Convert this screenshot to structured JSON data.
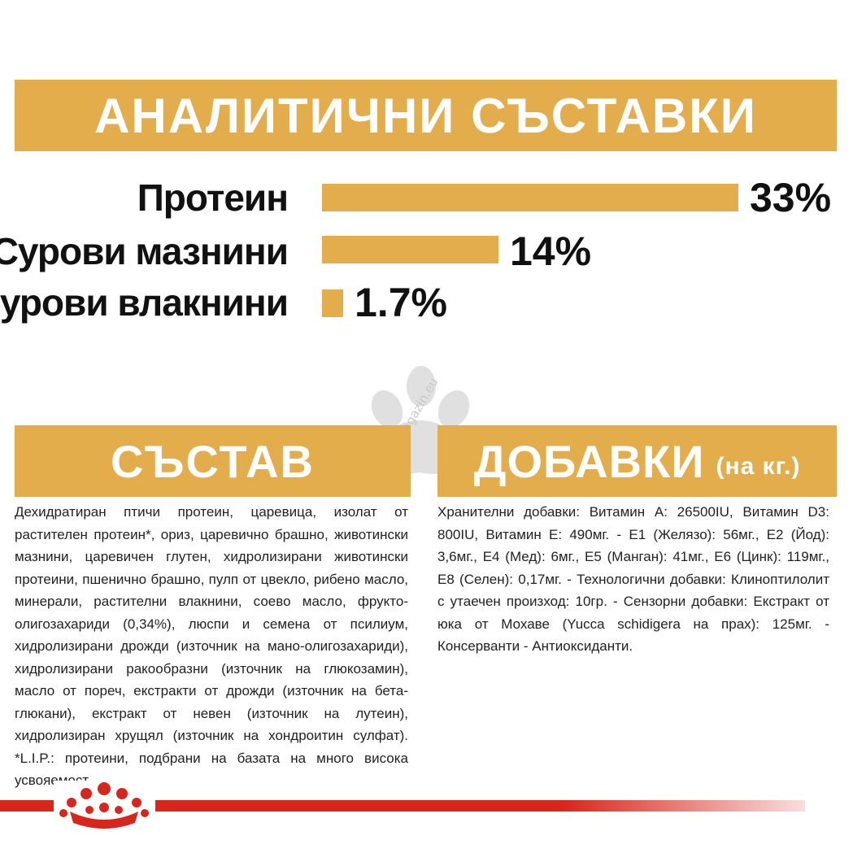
{
  "header": {
    "title": "АНАЛИТИЧНИ СЪСТАВКИ"
  },
  "nutrients": [
    {
      "label": "Протеин",
      "value_text": "33%",
      "value": 33
    },
    {
      "label": "Сурови мазнини",
      "value_text": "14%",
      "value": 14
    },
    {
      "label": "Сурови влакнини",
      "value_text": "1.7%",
      "value": 1.7
    }
  ],
  "composition": {
    "title": "СЪСТАВ",
    "text": "Дехидратиран птичи протеин, царевица, изолат от растителен протеин*, ориз, царевично брашно, животински мазнини, царевичен глутен, хидролизирани животински протеини, пшенично брашно, пулп от цвекло, рибено масло, минерали, растителни влакнини, соево масло, фрукто- олигозахариди (0,34%), люспи и семена от псилиум, хидролизирани дрожди (източник на мано-олигозахариди), хидролизирани ракообразни (източник на глюкозамин), масло от пореч, екстракти от дрожди (източник на бета- глюкани), екстракт от невен (източник на лутеин), хидролизиран хрущял (източник на хондроитин сулфат). *L.I.P.: протеини, подбрани на базата на много висока усвояемост."
  },
  "additives": {
    "title": "ДОБАВКИ",
    "subtitle": "(на кг.)",
    "text": "Хранителни добавки: Витамин A: 26500IU, Витамин D3: 800IU, Витамин E: 490мг. - E1 (Желязо): 56мг., E2 (Йод): 3,6мг., E4 (Мед): 6мг., E5 (Манган): 41мг., E6 (Цинк): 119мг., E8 (Селен): 0,17мг. - Технологични добавки: Клиноптилолит с утаечен произход: 10гр. - Сензорни добавки: Екстракт от юка от Мохаве (Yucca schidigera на прах): 125мг. - Консерванти - Антиоксиданти."
  },
  "watermark": {
    "text": "zoomagazin.eu"
  },
  "colors": {
    "accent": "#e4ad4c",
    "brand_red": "#d9261c"
  },
  "icons": {
    "logo": "royal-canin-crown-icon",
    "watermark": "paw-icon"
  }
}
